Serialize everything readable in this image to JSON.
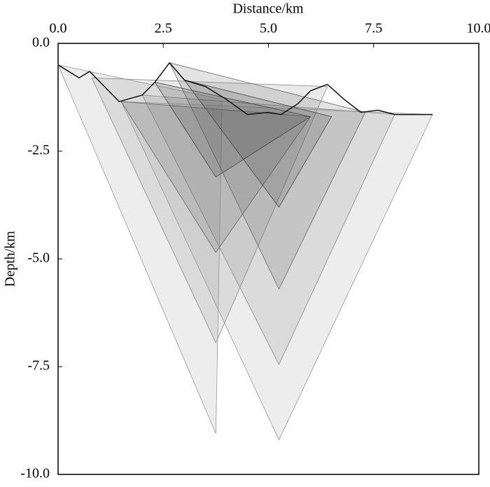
{
  "chart_data": {
    "type": "line",
    "x_label": "Distance/km",
    "y_label": "Depth/km",
    "xlim": [
      0,
      10
    ],
    "ylim": [
      -10,
      0
    ],
    "xticks": [
      {
        "value": 0,
        "label": "0.0"
      },
      2.5,
      {
        "value": 5,
        "label": "5.0"
      },
      7.5,
      {
        "value": 10,
        "label": "10.0"
      }
    ],
    "yticks": [
      {
        "value": 0,
        "label": "0.0"
      },
      -2.5,
      {
        "value": -5,
        "label": "-5.0"
      },
      -7.5,
      {
        "value": -10,
        "label": "-10.0"
      }
    ],
    "grid": false,
    "series": [
      {
        "color": "#999999",
        "x": [
          0.0,
          3.75,
          3.9
        ],
        "values": [
          -0.5,
          -9.05,
          -1.3
        ]
      },
      {
        "color": "#999999",
        "x": [
          1.5,
          5.25,
          8.9
        ],
        "values": [
          -1.35,
          -9.2,
          -1.65
        ]
      },
      {
        "color": "#888888",
        "x": [
          0.8,
          3.75,
          6.4
        ],
        "values": [
          -0.8,
          -6.95,
          -1.0
        ]
      },
      {
        "color": "#888888",
        "x": [
          2.0,
          5.25,
          8.0
        ],
        "values": [
          -1.2,
          -7.45,
          -1.65
        ]
      },
      {
        "color": "#666666",
        "x": [
          1.5,
          3.75,
          6.0
        ],
        "values": [
          -1.35,
          -4.85,
          -1.7
        ]
      },
      {
        "color": "#666666",
        "x": [
          2.65,
          5.25,
          7.3
        ],
        "values": [
          -0.45,
          -5.7,
          -1.6
        ]
      },
      {
        "color": "#444444",
        "x": [
          2.3,
          3.75,
          6.0
        ],
        "values": [
          -0.9,
          -3.1,
          -1.7
        ]
      },
      {
        "color": "#444444",
        "x": [
          3.0,
          5.25,
          6.5
        ],
        "values": [
          -0.85,
          -3.8,
          -1.7
        ]
      },
      {
        "color": "#111111",
        "x": [
          0.0,
          0.5,
          0.75,
          1.0,
          1.45,
          2.0,
          2.3,
          2.65,
          3.0,
          3.5,
          4.0,
          4.5,
          5.0,
          5.3,
          5.7,
          6.0,
          6.4,
          6.8,
          7.2,
          7.6,
          8.0,
          8.9
        ],
        "values": [
          -0.5,
          -0.8,
          -0.65,
          -0.9,
          -1.35,
          -1.2,
          -0.9,
          -0.45,
          -0.85,
          -1.0,
          -1.3,
          -1.65,
          -1.6,
          -1.65,
          -1.4,
          -1.1,
          -0.95,
          -1.3,
          -1.6,
          -1.55,
          -1.65,
          -1.65
        ]
      }
    ]
  }
}
